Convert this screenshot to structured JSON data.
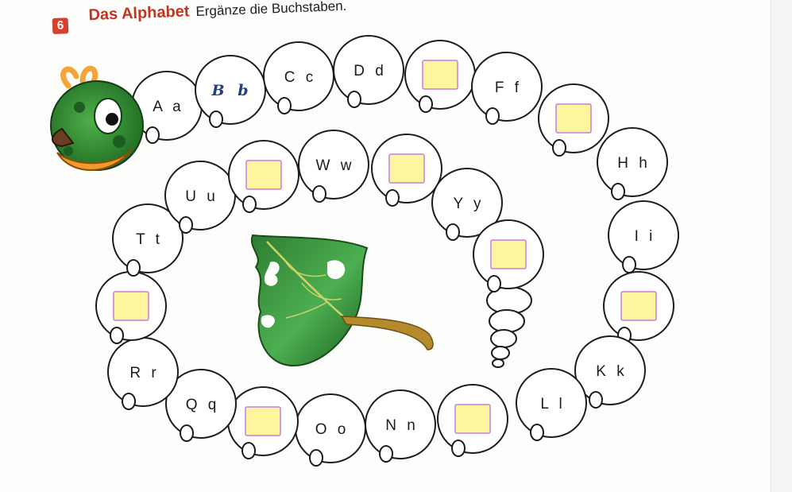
{
  "exercise": {
    "number": "6",
    "title": "Das Alphabet",
    "instruction": "Ergänze die Buchstaben."
  },
  "colors": {
    "title": "#c2351f",
    "badge": "#d7402a",
    "answer_box_fill": "#fff59d",
    "answer_box_border": "#c77dde",
    "handwriting": "#23407d",
    "leaf": "#3f9a2f",
    "caterpillar_head": "#2f8a2e"
  },
  "segments": [
    {
      "id": "a",
      "label": "A a",
      "blank": false
    },
    {
      "id": "b",
      "label": "B b",
      "blank": false,
      "handwritten": true
    },
    {
      "id": "c",
      "label": "C c",
      "blank": false
    },
    {
      "id": "d",
      "label": "D d",
      "blank": false
    },
    {
      "id": "e",
      "label": "",
      "blank": true
    },
    {
      "id": "f",
      "label": "F f",
      "blank": false
    },
    {
      "id": "g",
      "label": "",
      "blank": true
    },
    {
      "id": "h",
      "label": "H h",
      "blank": false
    },
    {
      "id": "i",
      "label": "I i",
      "blank": false
    },
    {
      "id": "j",
      "label": "",
      "blank": true
    },
    {
      "id": "k",
      "label": "K k",
      "blank": false
    },
    {
      "id": "l",
      "label": "L l",
      "blank": false
    },
    {
      "id": "m",
      "label": "",
      "blank": true
    },
    {
      "id": "n",
      "label": "N n",
      "blank": false
    },
    {
      "id": "o",
      "label": "O o",
      "blank": false
    },
    {
      "id": "p",
      "label": "",
      "blank": true
    },
    {
      "id": "q",
      "label": "Q q",
      "blank": false
    },
    {
      "id": "r",
      "label": "R r",
      "blank": false
    },
    {
      "id": "s",
      "label": "",
      "blank": true
    },
    {
      "id": "t",
      "label": "T t",
      "blank": false
    },
    {
      "id": "u",
      "label": "U u",
      "blank": false
    },
    {
      "id": "v",
      "label": "",
      "blank": true
    },
    {
      "id": "w",
      "label": "W w",
      "blank": false
    },
    {
      "id": "x",
      "label": "",
      "blank": true
    },
    {
      "id": "y",
      "label": "Y y",
      "blank": false
    },
    {
      "id": "z",
      "label": "",
      "blank": true
    }
  ]
}
